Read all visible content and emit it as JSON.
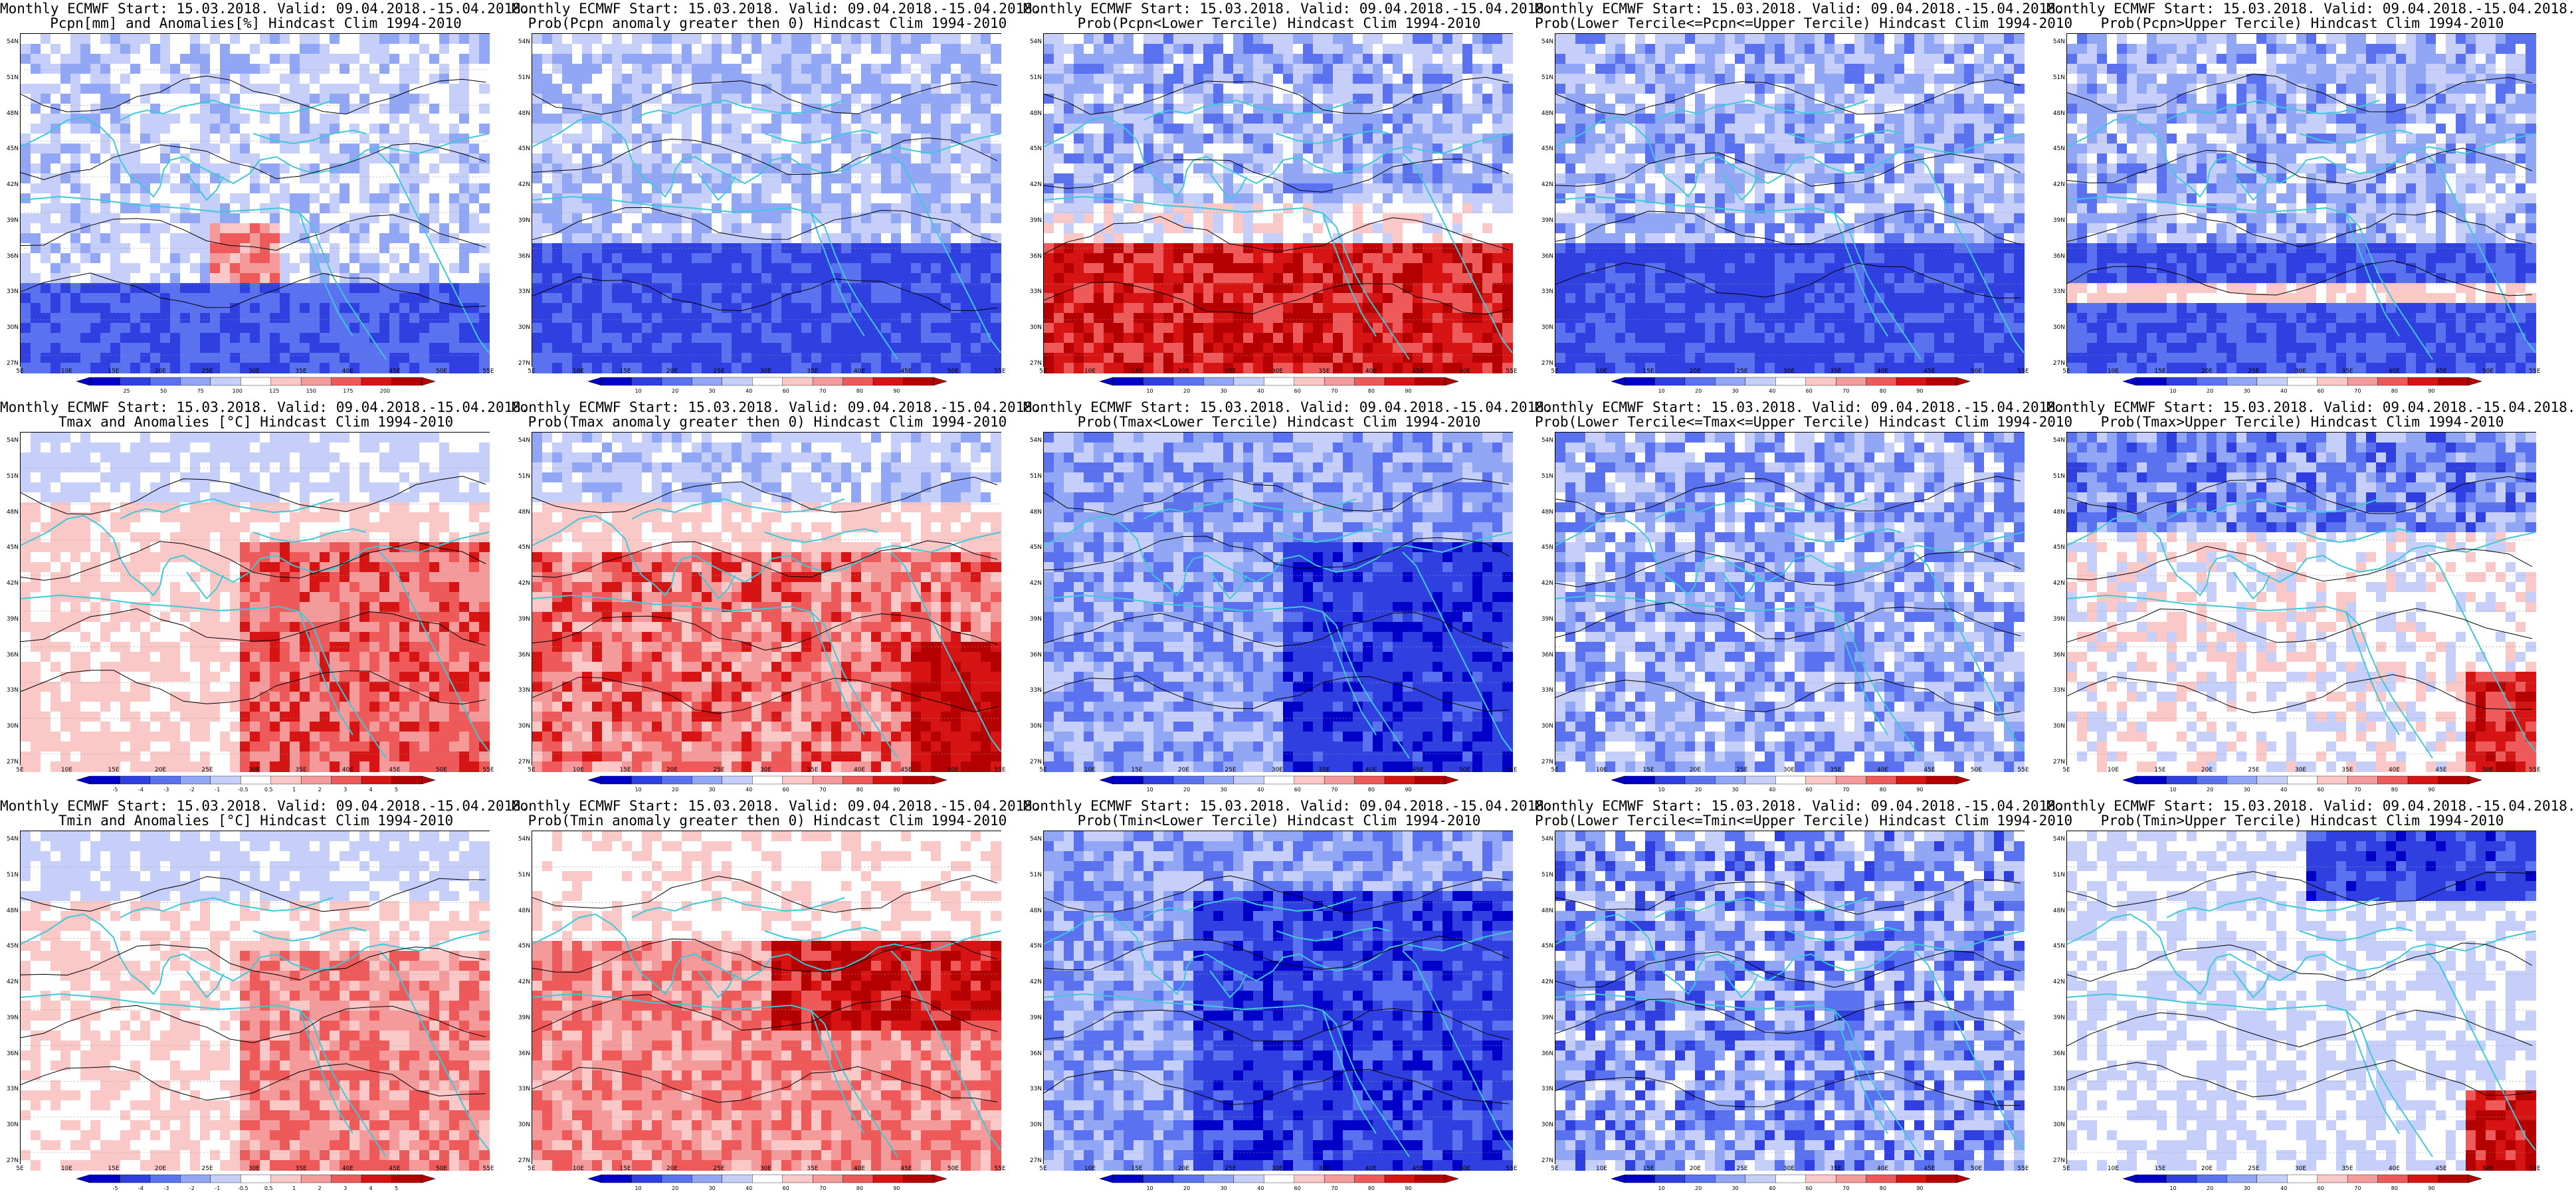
{
  "panels": [
    {
      "title_line1": "Monthly ECMWF Start: 15.03.2018. Valid: 09.04.2018.-15.04.2018.",
      "title_line2": "Pcpn[mm] and Anomalies[%] Hindcast Clim 1994-2010",
      "scale": "anomaly",
      "colorbar_ticks": [
        "25",
        "50",
        "75",
        "100",
        "125",
        "150",
        "175",
        "200"
      ]
    },
    {
      "title_line1": "Monthly ECMWF Start: 15.03.2018. Valid: 09.04.2018.-15.04.2018.",
      "title_line2": "Prob(Pcpn anomaly greater then 0) Hindcast Clim 1994-2010",
      "scale": "prob",
      "colorbar_ticks": [
        "10",
        "20",
        "30",
        "40",
        "60",
        "70",
        "80",
        "90"
      ]
    },
    {
      "title_line1": "Monthly ECMWF Start: 15.03.2018. Valid: 09.04.2018.-15.04.2018.",
      "title_line2": "Prob(Pcpn<Lower Tercile) Hindcast Clim 1994-2010",
      "scale": "prob",
      "colorbar_ticks": [
        "10",
        "20",
        "30",
        "40",
        "60",
        "70",
        "80",
        "90"
      ]
    },
    {
      "title_line1": "Monthly ECMWF Start: 15.03.2018. Valid: 09.04.2018.-15.04.2018.",
      "title_line2": "Prob(Lower Tercile<=Pcpn<=Upper Tercile) Hindcast Clim 1994-2010",
      "scale": "prob",
      "colorbar_ticks": [
        "10",
        "20",
        "30",
        "40",
        "60",
        "70",
        "80",
        "90"
      ]
    },
    {
      "title_line1": "Monthly ECMWF Start: 15.03.2018. Valid: 09.04.2018.-15.04.2018.",
      "title_line2": "Prob(Pcpn>Upper Tercile) Hindcast Clim 1994-2010",
      "scale": "prob",
      "colorbar_ticks": [
        "10",
        "20",
        "30",
        "40",
        "60",
        "70",
        "80",
        "90"
      ]
    },
    {
      "title_line1": "Monthly ECMWF Start: 15.03.2018. Valid: 09.04.2018.-15.04.2018.",
      "title_line2": "Tmax and Anomalies [°C] Hindcast Clim 1994-2010",
      "scale": "temp",
      "colorbar_ticks": [
        "-5",
        "-4",
        "-3",
        "-2",
        "-1",
        "-0.5",
        "0.5",
        "1",
        "2",
        "3",
        "4",
        "5"
      ]
    },
    {
      "title_line1": "Monthly ECMWF Start: 15.03.2018. Valid: 09.04.2018.-15.04.2018.",
      "title_line2": "Prob(Tmax anomaly greater then 0) Hindcast Clim 1994-2010",
      "scale": "prob",
      "colorbar_ticks": [
        "10",
        "20",
        "30",
        "40",
        "60",
        "70",
        "80",
        "90"
      ]
    },
    {
      "title_line1": "Monthly ECMWF Start: 15.03.2018. Valid: 09.04.2018.-15.04.2018.",
      "title_line2": "Prob(Tmax<Lower Tercile) Hindcast Clim 1994-2010",
      "scale": "prob",
      "colorbar_ticks": [
        "10",
        "20",
        "30",
        "40",
        "60",
        "70",
        "80",
        "90"
      ]
    },
    {
      "title_line1": "Monthly ECMWF Start: 15.03.2018. Valid: 09.04.2018.-15.04.2018.",
      "title_line2": "Prob(Lower Tercile<=Tmax<=Upper Tercile) Hindcast Clim 1994-2010",
      "scale": "prob",
      "colorbar_ticks": [
        "10",
        "20",
        "30",
        "40",
        "60",
        "70",
        "80",
        "90"
      ]
    },
    {
      "title_line1": "Monthly ECMWF Start: 15.03.2018. Valid: 09.04.2018.-15.04.2018.",
      "title_line2": "Prob(Tmax>Upper Tercile) Hindcast Clim 1994-2010",
      "scale": "prob",
      "colorbar_ticks": [
        "10",
        "20",
        "30",
        "40",
        "60",
        "70",
        "80",
        "90"
      ]
    },
    {
      "title_line1": "Monthly ECMWF Start: 15.03.2018. Valid: 09.04.2018.-15.04.2018.",
      "title_line2": "Tmin and Anomalies [°C] Hindcast Clim 1994-2010",
      "scale": "temp",
      "colorbar_ticks": [
        "-5",
        "-4",
        "-3",
        "-2",
        "-1",
        "-0.5",
        "0.5",
        "1",
        "2",
        "3",
        "4",
        "5"
      ]
    },
    {
      "title_line1": "Monthly ECMWF Start: 15.03.2018. Valid: 09.04.2018.-15.04.2018.",
      "title_line2": "Prob(Tmin anomaly greater then 0) Hindcast Clim 1994-2010",
      "scale": "prob",
      "colorbar_ticks": [
        "10",
        "20",
        "30",
        "40",
        "60",
        "70",
        "80",
        "90"
      ]
    },
    {
      "title_line1": "Monthly ECMWF Start: 15.03.2018. Valid: 09.04.2018.-15.04.2018.",
      "title_line2": "Prob(Tmin<Lower Tercile) Hindcast Clim 1994-2010",
      "scale": "prob",
      "colorbar_ticks": [
        "10",
        "20",
        "30",
        "40",
        "60",
        "70",
        "80",
        "90"
      ]
    },
    {
      "title_line1": "Monthly ECMWF Start: 15.03.2018. Valid: 09.04.2018.-15.04.2018.",
      "title_line2": "Prob(Lower Tercile<=Tmin<=Upper Tercile) Hindcast Clim 1994-2010",
      "scale": "prob",
      "colorbar_ticks": [
        "10",
        "20",
        "30",
        "40",
        "60",
        "70",
        "80",
        "90"
      ]
    },
    {
      "title_line1": "Monthly ECMWF Start: 15.03.2018. Valid: 09.04.2018.-15.04.2018.",
      "title_line2": "Prob(Tmin>Upper Tercile) Hindcast Clim 1994-2010",
      "scale": "prob",
      "colorbar_ticks": [
        "10",
        "20",
        "30",
        "40",
        "60",
        "70",
        "80",
        "90"
      ]
    }
  ],
  "axes": {
    "lat_labels": [
      "54N",
      "51N",
      "48N",
      "45N",
      "42N",
      "39N",
      "36N",
      "33N",
      "30N",
      "27N"
    ],
    "lon_labels": [
      "5E",
      "10E",
      "15E",
      "20E",
      "25E",
      "30E",
      "35E",
      "40E",
      "45E",
      "50E",
      "55E"
    ]
  },
  "palettes": {
    "prob": [
      "#0000c8",
      "#2f3fe0",
      "#5a72f0",
      "#92a6f6",
      "#c5cffa",
      "#ffffff",
      "#fbc8c8",
      "#f59a9a",
      "#ee5a5a",
      "#d61414",
      "#b40000"
    ],
    "coastline_color": "#3ec8d8",
    "contour_color": "#000000"
  }
}
